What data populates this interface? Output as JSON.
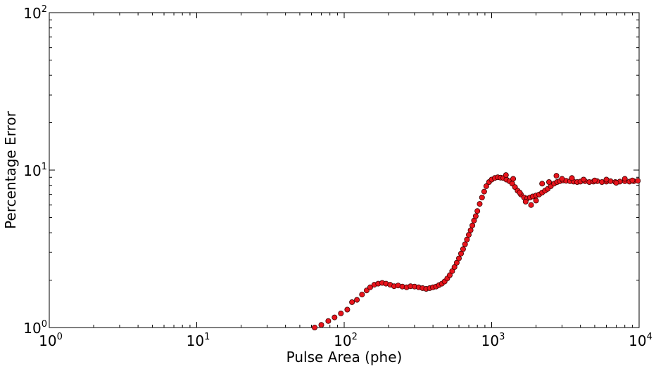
{
  "chart_data": {
    "type": "scatter",
    "title": "",
    "xlabel": "Pulse Area (phe)",
    "ylabel": "Percentage Error",
    "xscale": "log",
    "yscale": "log",
    "xlim": [
      1,
      10000
    ],
    "ylim": [
      1,
      100
    ],
    "grid": false,
    "legend": "none",
    "x_ticks": [
      {
        "base": "10",
        "exp": "0"
      },
      {
        "base": "10",
        "exp": "1"
      },
      {
        "base": "10",
        "exp": "2"
      },
      {
        "base": "10",
        "exp": "3"
      },
      {
        "base": "10",
        "exp": "4"
      }
    ],
    "y_ticks": [
      {
        "base": "10",
        "exp": "0"
      },
      {
        "base": "10",
        "exp": "1"
      },
      {
        "base": "10",
        "exp": "2"
      }
    ],
    "marker_color": "#e8141c",
    "marker_edge": "#3a0000",
    "series": [
      {
        "x": [
          63,
          70,
          78,
          86,
          95,
          105,
          113,
          122,
          132,
          142,
          150,
          160,
          170,
          181,
          192,
          205,
          218,
          232,
          248,
          265,
          282,
          300,
          320,
          340,
          360,
          380,
          400,
          420,
          440,
          460,
          480,
          500,
          520,
          540,
          560,
          580,
          600,
          620,
          640,
          660,
          680,
          700,
          720,
          740,
          760,
          780,
          800,
          830,
          860,
          890,
          920,
          960,
          1000,
          1050,
          1100,
          1150,
          1200,
          1260,
          1320,
          1380,
          1440,
          1500,
          1580,
          1660,
          1740,
          1820,
          1900,
          2000,
          2100,
          2200,
          2300,
          2400,
          2520,
          2650,
          2780,
          2900,
          3050,
          3200,
          3400,
          3600,
          3800,
          4000,
          4300,
          4600,
          4900,
          5200,
          5600,
          6000,
          6400,
          6900,
          7400,
          8000,
          8600,
          9200,
          9800,
          1250,
          1400,
          1550,
          1700,
          1850,
          2000,
          2200,
          2450,
          2750,
          3000,
          3500,
          4200,
          5000,
          6000,
          7000,
          8000,
          9000
        ],
        "y": [
          1.0,
          1.04,
          1.1,
          1.16,
          1.23,
          1.3,
          1.45,
          1.5,
          1.62,
          1.72,
          1.8,
          1.87,
          1.9,
          1.92,
          1.9,
          1.87,
          1.83,
          1.85,
          1.82,
          1.8,
          1.83,
          1.82,
          1.8,
          1.78,
          1.76,
          1.78,
          1.8,
          1.82,
          1.86,
          1.9,
          1.96,
          2.05,
          2.15,
          2.28,
          2.42,
          2.58,
          2.75,
          2.95,
          3.15,
          3.38,
          3.62,
          3.88,
          4.15,
          4.45,
          4.78,
          5.1,
          5.5,
          6.1,
          6.7,
          7.3,
          7.9,
          8.4,
          8.7,
          8.9,
          9.0,
          8.95,
          8.9,
          8.7,
          8.5,
          8.2,
          7.8,
          7.4,
          7.0,
          6.7,
          6.6,
          6.7,
          6.8,
          6.9,
          7.0,
          7.2,
          7.4,
          7.6,
          7.9,
          8.2,
          8.4,
          8.5,
          8.6,
          8.55,
          8.5,
          8.45,
          8.4,
          8.45,
          8.5,
          8.4,
          8.45,
          8.5,
          8.4,
          8.45,
          8.5,
          8.4,
          8.45,
          8.5,
          8.45,
          8.5,
          8.55,
          9.3,
          8.8,
          7.2,
          6.3,
          6.0,
          6.4,
          8.2,
          8.4,
          9.2,
          8.8,
          8.9,
          8.7,
          8.6,
          8.7,
          8.3,
          8.8,
          8.6
        ]
      }
    ]
  }
}
